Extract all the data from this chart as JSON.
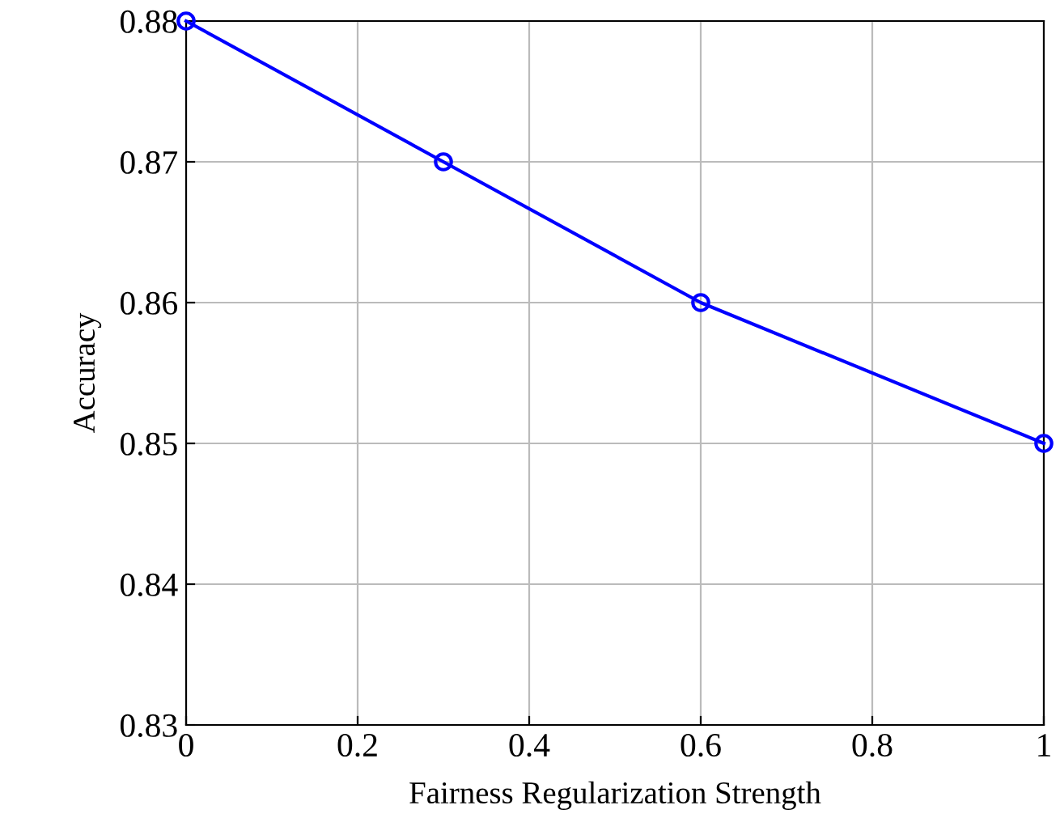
{
  "chart_data": {
    "type": "line",
    "xlabel": "Fairness Regularization Strength",
    "ylabel": "Accuracy",
    "x": [
      0,
      0.3,
      0.6,
      1
    ],
    "series": [
      {
        "color": "#0000ff",
        "values": [
          0.88,
          0.87,
          0.86,
          0.85
        ]
      }
    ],
    "xlim": [
      0,
      1
    ],
    "ylim": [
      0.83,
      0.88
    ],
    "xticks": [
      0,
      0.2,
      0.4,
      0.6,
      0.8,
      1
    ],
    "yticks": [
      0.83,
      0.84,
      0.85,
      0.86,
      0.87,
      0.88
    ],
    "grid": true,
    "marker": "circle",
    "line_style": "solid"
  }
}
